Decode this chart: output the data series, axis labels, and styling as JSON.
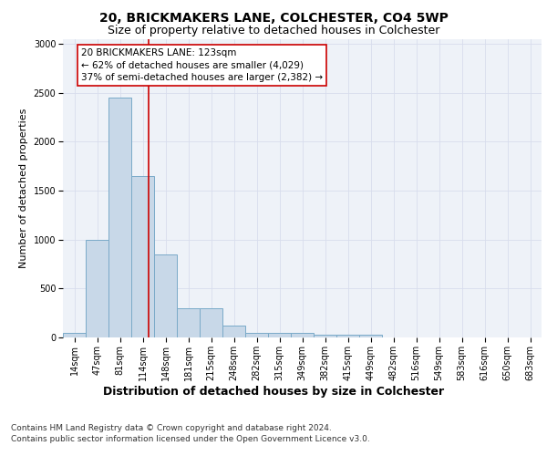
{
  "title1": "20, BRICKMAKERS LANE, COLCHESTER, CO4 5WP",
  "title2": "Size of property relative to detached houses in Colchester",
  "xlabel": "Distribution of detached houses by size in Colchester",
  "ylabel": "Number of detached properties",
  "footnote": "Contains HM Land Registry data © Crown copyright and database right 2024.\nContains public sector information licensed under the Open Government Licence v3.0.",
  "bar_labels": [
    "14sqm",
    "47sqm",
    "81sqm",
    "114sqm",
    "148sqm",
    "181sqm",
    "215sqm",
    "248sqm",
    "282sqm",
    "315sqm",
    "349sqm",
    "382sqm",
    "415sqm",
    "449sqm",
    "482sqm",
    "516sqm",
    "549sqm",
    "583sqm",
    "616sqm",
    "650sqm",
    "683sqm"
  ],
  "bar_values": [
    50,
    1000,
    2450,
    1650,
    850,
    295,
    295,
    120,
    50,
    50,
    50,
    30,
    30,
    30,
    0,
    0,
    0,
    0,
    0,
    0,
    0
  ],
  "bar_color": "#c8d8e8",
  "bar_edge_color": "#7aaac8",
  "bar_edge_width": 0.7,
  "property_line_color": "#cc0000",
  "annotation_text": "20 BRICKMAKERS LANE: 123sqm\n← 62% of detached houses are smaller (4,029)\n37% of semi-detached houses are larger (2,382) →",
  "annotation_box_color": "#cc0000",
  "ylim": [
    0,
    3050
  ],
  "yticks": [
    0,
    500,
    1000,
    1500,
    2000,
    2500,
    3000
  ],
  "grid_color": "#d8dded",
  "bg_color": "#eef2f8",
  "title1_fontsize": 10,
  "title2_fontsize": 9,
  "ylabel_fontsize": 8,
  "xlabel_fontsize": 9,
  "tick_fontsize": 7,
  "annotation_fontsize": 7.5,
  "footnote_fontsize": 6.5
}
